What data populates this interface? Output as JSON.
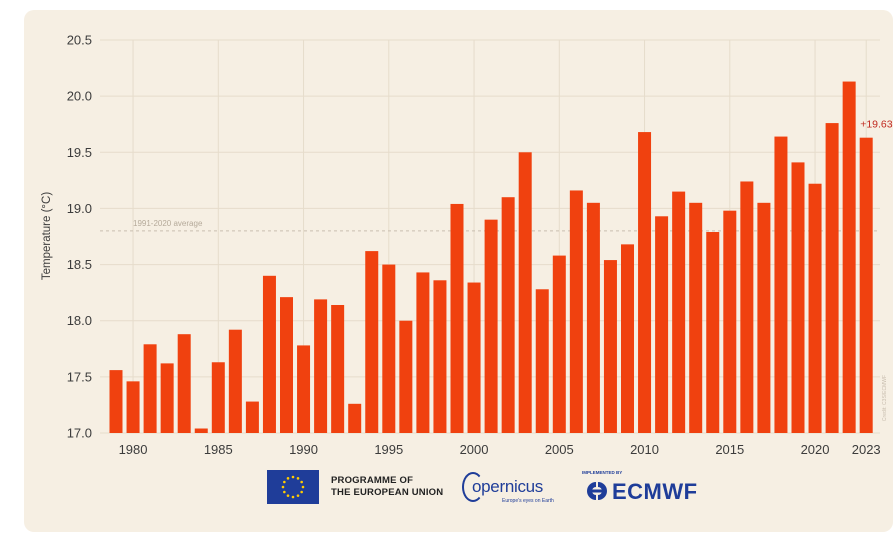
{
  "chart_data": {
    "type": "bar",
    "title": "",
    "xlabel": "",
    "ylabel": "Temperature (°C)",
    "ylim": [
      17.0,
      20.5
    ],
    "yticks": [
      "17.0",
      "17.5",
      "18.0",
      "18.5",
      "19.0",
      "19.5",
      "20.0",
      "20.5"
    ],
    "xticks": [
      "1980",
      "1985",
      "1990",
      "1995",
      "2000",
      "2005",
      "2010",
      "2015",
      "2020",
      "2023"
    ],
    "categories": [
      1979,
      1980,
      1981,
      1982,
      1983,
      1984,
      1985,
      1986,
      1987,
      1988,
      1989,
      1990,
      1991,
      1992,
      1993,
      1994,
      1995,
      1996,
      1997,
      1998,
      1999,
      2000,
      2001,
      2002,
      2003,
      2004,
      2005,
      2006,
      2007,
      2008,
      2009,
      2010,
      2011,
      2012,
      2013,
      2014,
      2015,
      2016,
      2017,
      2018,
      2019,
      2020,
      2021,
      2022,
      2023
    ],
    "values": [
      17.56,
      17.46,
      17.79,
      17.62,
      17.88,
      17.04,
      17.63,
      17.92,
      17.28,
      18.4,
      18.21,
      17.78,
      18.19,
      18.14,
      17.26,
      18.62,
      18.5,
      18.0,
      18.43,
      18.36,
      19.04,
      18.34,
      18.9,
      19.1,
      19.5,
      18.28,
      18.58,
      19.16,
      19.05,
      18.54,
      18.68,
      19.68,
      18.93,
      19.15,
      19.05,
      18.79,
      18.98,
      19.24,
      19.05,
      19.64,
      19.41,
      19.22,
      19.76,
      20.13,
      19.63
    ],
    "bar_color": "#f0410f",
    "reference_line": {
      "label": "1991-2020 average",
      "value": 18.8
    },
    "annotation": {
      "label": "+19.63",
      "year": 2023
    },
    "grid": true,
    "credit": "Credit: C3S/ECMWF"
  },
  "logos": {
    "eu_text_line1": "PROGRAMME OF",
    "eu_text_line2": "THE EUROPEAN UNION",
    "copernicus_word": "opernicus",
    "copernicus_tagline": "Europe's eyes on Earth",
    "ecmwf_tagline": "IMPLEMENTED BY",
    "ecmwf_word": "ECMWF",
    "brand_color": "#1f3d99"
  }
}
